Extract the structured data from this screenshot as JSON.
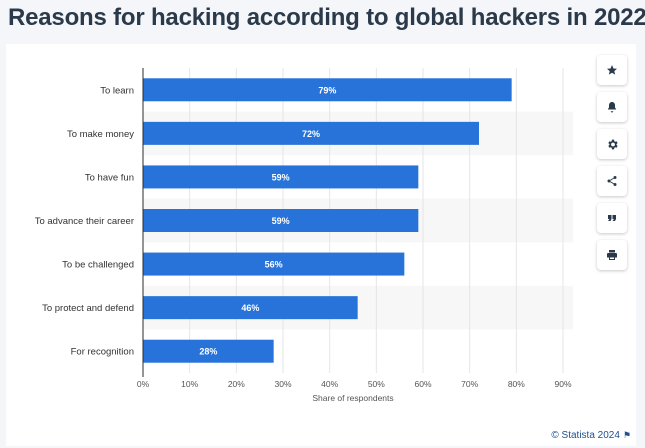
{
  "page": {
    "title": "Reasons for hacking according to global hackers in 2022",
    "credit": "© Statista 2024",
    "credit_flag": "⚑"
  },
  "toolbar": {
    "icons": [
      "star-icon",
      "bell-icon",
      "gear-icon",
      "share-icon",
      "quote-icon",
      "print-icon"
    ]
  },
  "colors": {
    "bar": "#2873d9",
    "band": "#f7f7f7",
    "grid": "#e6e6e6",
    "axis": "#2b2b2b",
    "text": "#333333",
    "credit": "#1e4f8f"
  },
  "chart_data": {
    "type": "bar",
    "orientation": "horizontal",
    "categories": [
      "To learn",
      "To make money",
      "To have fun",
      "To advance their career",
      "To be challenged",
      "To protect and defend",
      "For recognition"
    ],
    "values": [
      79,
      72,
      59,
      59,
      56,
      46,
      28
    ],
    "value_labels": [
      "79%",
      "72%",
      "59%",
      "59%",
      "56%",
      "46%",
      "28%"
    ],
    "xlabel": "Share of respondents",
    "ylabel": "",
    "xlim": [
      0,
      90
    ],
    "xticks": [
      0,
      10,
      20,
      30,
      40,
      50,
      60,
      70,
      80,
      90
    ],
    "xtick_labels": [
      "0%",
      "10%",
      "20%",
      "30%",
      "40%",
      "50%",
      "60%",
      "70%",
      "80%",
      "90%"
    ],
    "grid": true,
    "legend": "none"
  }
}
